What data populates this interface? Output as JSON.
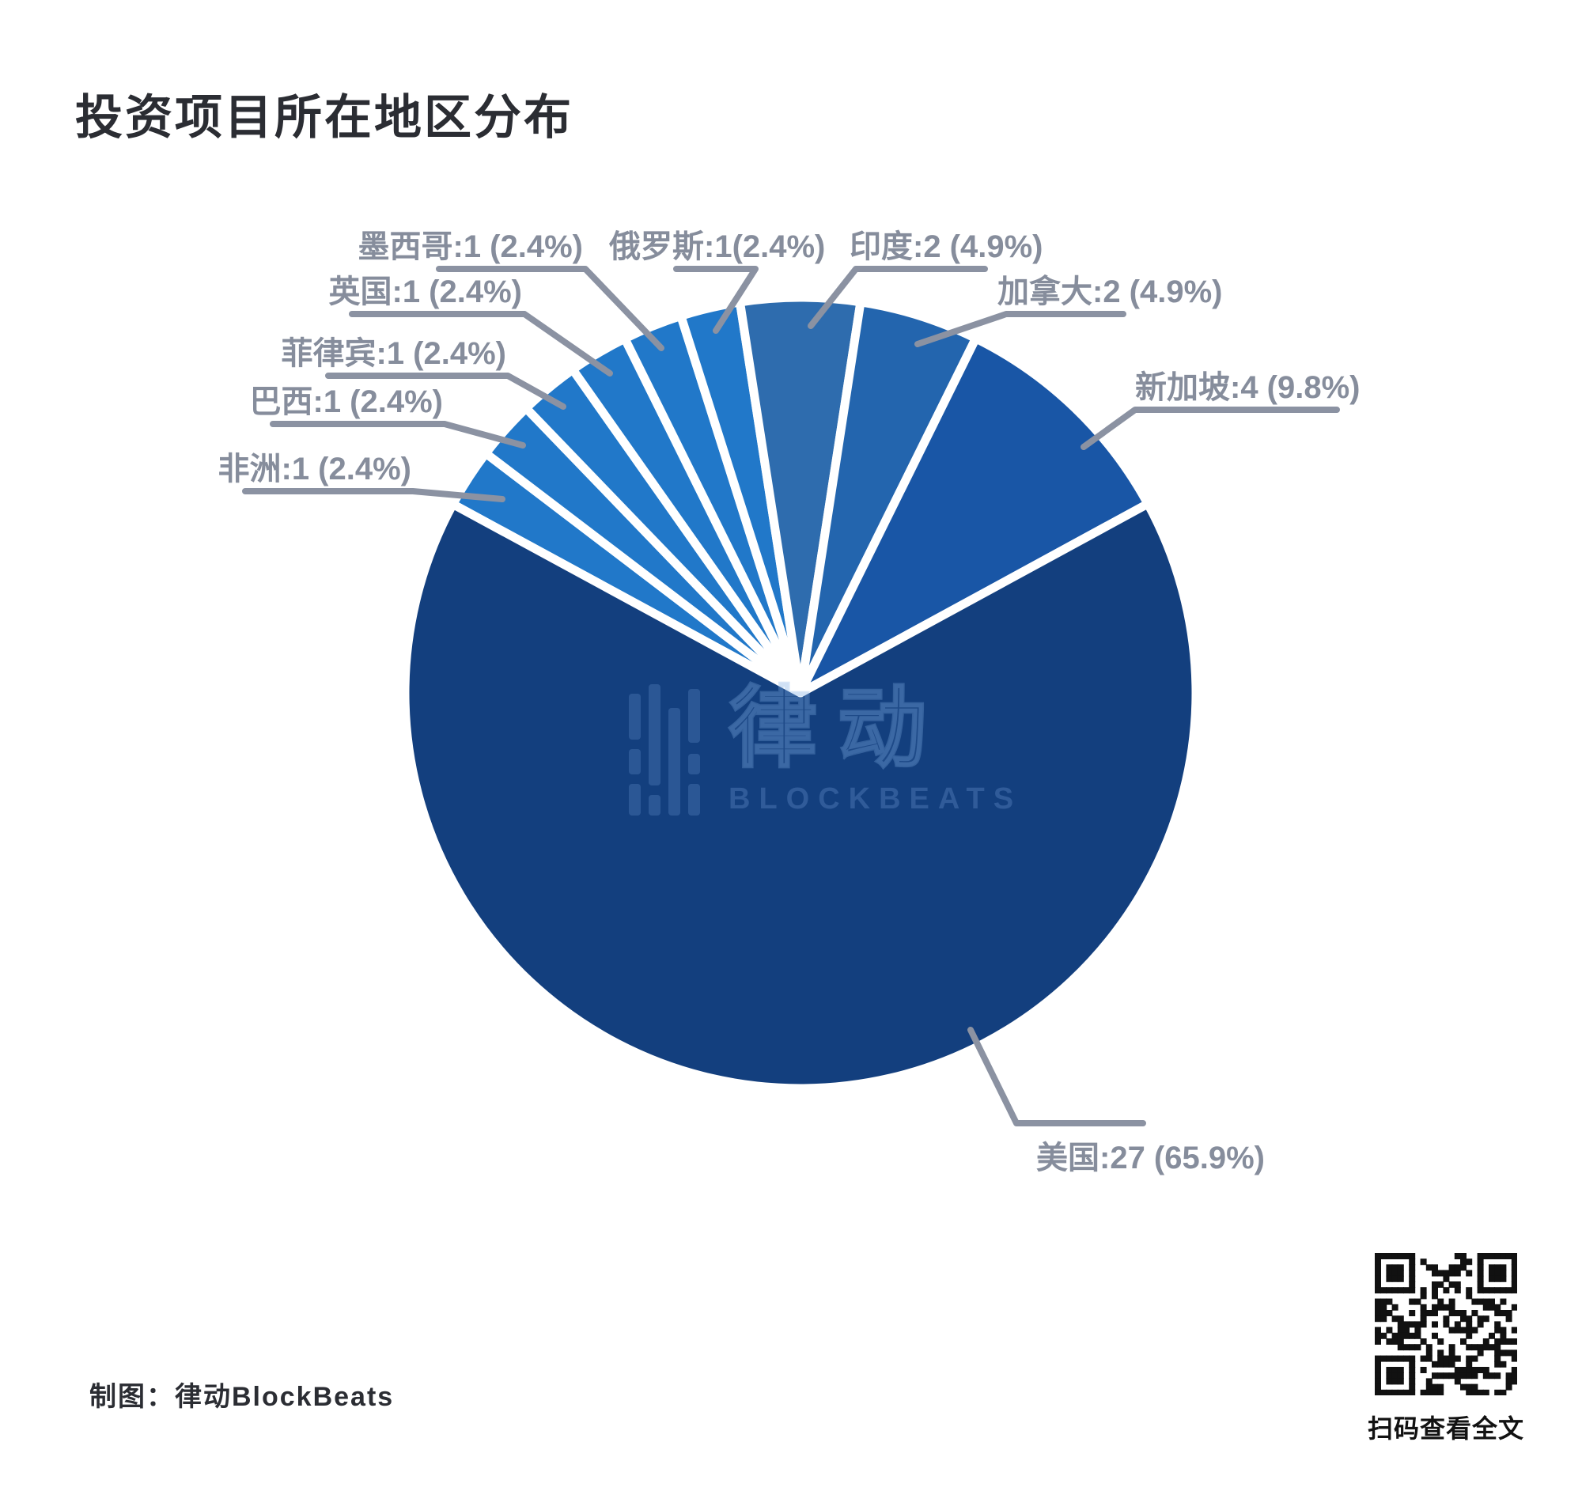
{
  "header": {
    "title": "投资项目所在地区分布"
  },
  "footer": {
    "credit": "制图：律动BlockBeats",
    "qr_caption": "扫码查看全文"
  },
  "watermark": {
    "name_zh": "律动",
    "name_en": "BLOCKBEATS"
  },
  "colors": {
    "background": "#ffffff",
    "title_text": "#2b2d33",
    "label_text": "#868d9c",
    "leader_line": "#8b92a2",
    "slice_border": "#ffffff"
  },
  "chart_data": {
    "type": "pie",
    "title": "投资项目所在地区分布",
    "total": 41,
    "start_angle_deg": -61.5,
    "legend_position": "none",
    "labels_format": "名称:数量 (百分比)",
    "slices": [
      {
        "label": "非洲",
        "value": 1,
        "pct": "2.4%",
        "display": "非洲:1 (2.4%)",
        "color": "#2178c9"
      },
      {
        "label": "巴西",
        "value": 1,
        "pct": "2.4%",
        "display": "巴西:1 (2.4%)",
        "color": "#2178c9"
      },
      {
        "label": "菲律宾",
        "value": 1,
        "pct": "2.4%",
        "display": "菲律宾:1 (2.4%)",
        "color": "#2178c9"
      },
      {
        "label": "英国",
        "value": 1,
        "pct": "2.4%",
        "display": "英国:1 (2.4%)",
        "color": "#2178c9"
      },
      {
        "label": "墨西哥",
        "value": 1,
        "pct": "2.4%",
        "display": "墨西哥:1 (2.4%)",
        "color": "#2178c9"
      },
      {
        "label": "俄罗斯",
        "value": 1,
        "pct": "2.4%",
        "display": "俄罗斯:1(2.4%)",
        "color": "#2178c9"
      },
      {
        "label": "印度",
        "value": 2,
        "pct": "4.9%",
        "display": "印度:2 (4.9%)",
        "color": "#2e6cae"
      },
      {
        "label": "加拿大",
        "value": 2,
        "pct": "4.9%",
        "display": "加拿大:2 (4.9%)",
        "color": "#2365ae"
      },
      {
        "label": "新加坡",
        "value": 4,
        "pct": "9.8%",
        "display": "新加坡:4 (9.8%)",
        "color": "#1956a6"
      },
      {
        "label": "美国",
        "value": 27,
        "pct": "65.9%",
        "display": "美国:27 (65.9%)",
        "color": "#133f7e"
      }
    ]
  }
}
